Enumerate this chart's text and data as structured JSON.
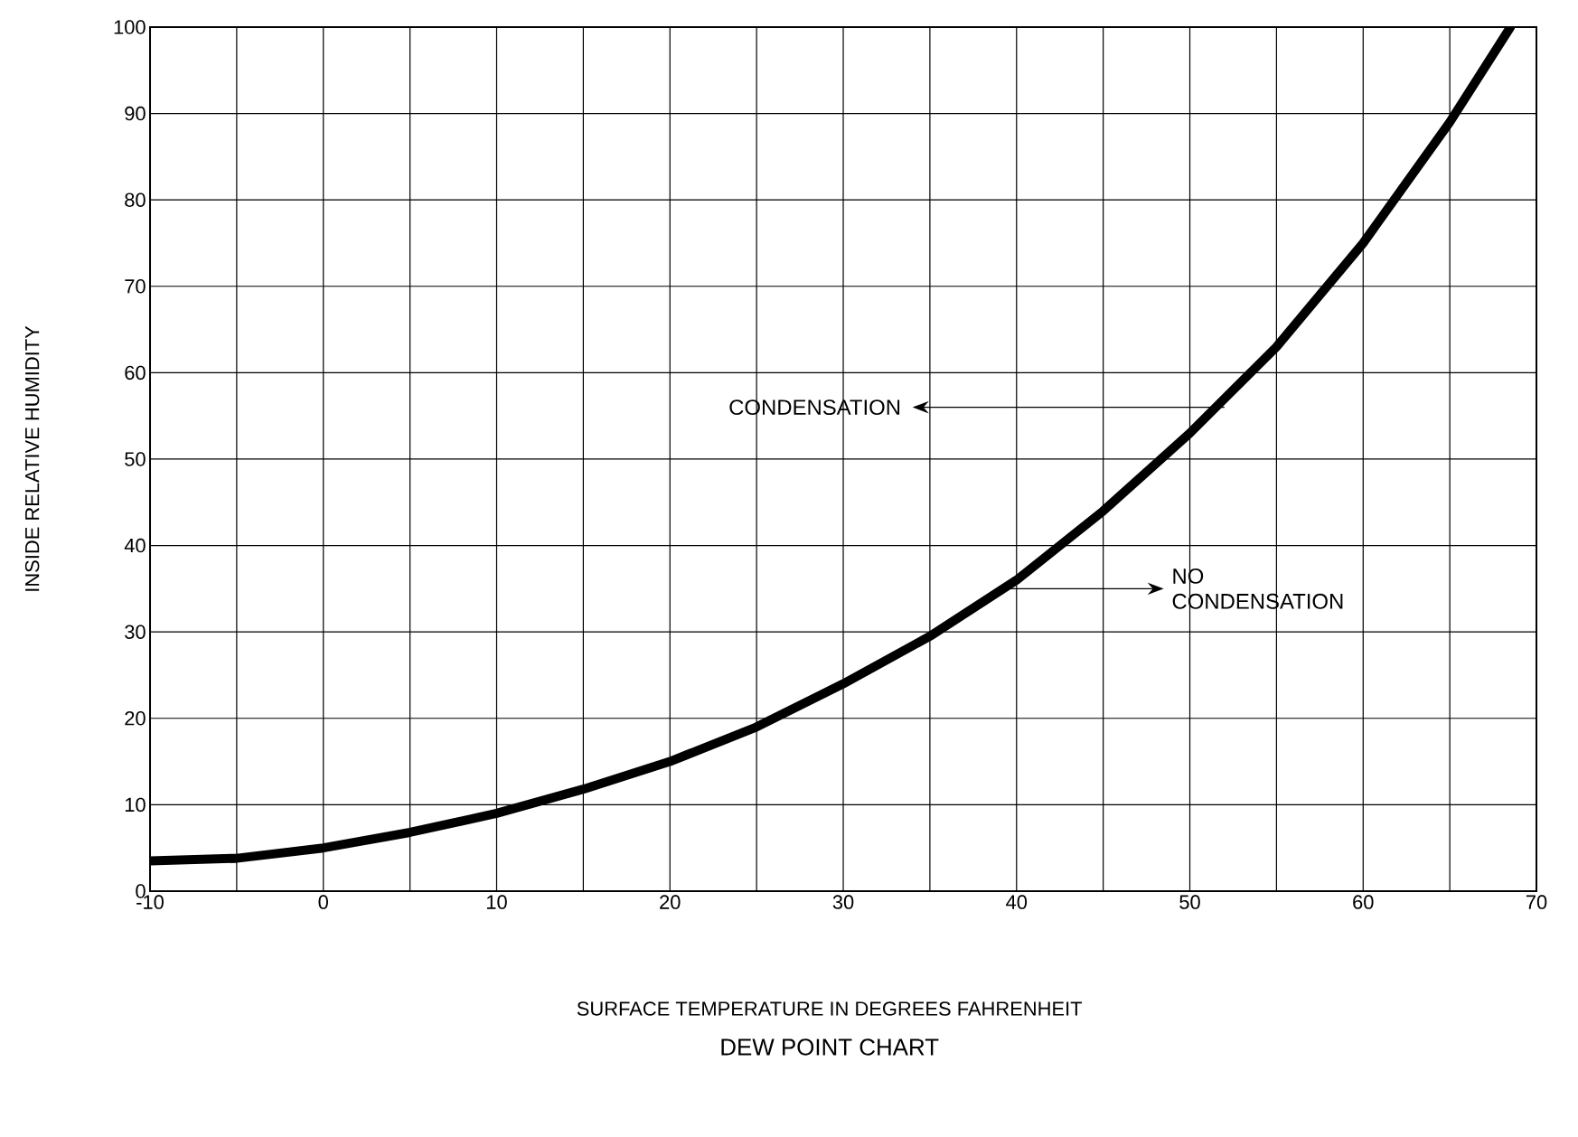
{
  "chart_data": {
    "type": "line",
    "title": "DEW POINT CHART",
    "xlabel": "SURFACE TEMPERATURE  IN DEGREES FAHRENHEIT",
    "ylabel": "INSIDE RELATIVE HUMIDITY",
    "x": [
      -10,
      -5,
      0,
      5,
      10,
      15,
      20,
      25,
      30,
      35,
      40,
      45,
      50,
      55,
      60,
      65,
      68.5
    ],
    "series": [
      {
        "color": "#000000",
        "values": [
          3.5,
          3.8,
          5,
          6.8,
          9,
          11.8,
          15,
          19,
          24,
          29.5,
          36,
          44,
          53,
          63,
          75,
          89,
          100
        ]
      }
    ],
    "xlim": [
      -10,
      70
    ],
    "ylim": [
      0,
      100
    ],
    "xticks": [
      -10,
      {
        "value": -5,
        "label": null
      },
      0,
      {
        "value": 5,
        "label": null
      },
      10,
      {
        "value": 15,
        "label": null
      },
      20,
      {
        "value": 25,
        "label": null
      },
      30,
      {
        "value": 35,
        "label": null
      },
      40,
      {
        "value": 45,
        "label": null
      },
      50,
      {
        "value": 55,
        "label": null
      },
      60,
      {
        "value": 65,
        "label": null
      },
      70
    ],
    "yticks": [
      0,
      10,
      20,
      30,
      40,
      50,
      60,
      70,
      80,
      90,
      100
    ],
    "grid": true,
    "annotations": [
      {
        "text": "CONDENSATION",
        "x": 52,
        "y": 56
      },
      {
        "text": "NO CONDENSATION",
        "x": 39.5,
        "y": 35
      }
    ]
  }
}
